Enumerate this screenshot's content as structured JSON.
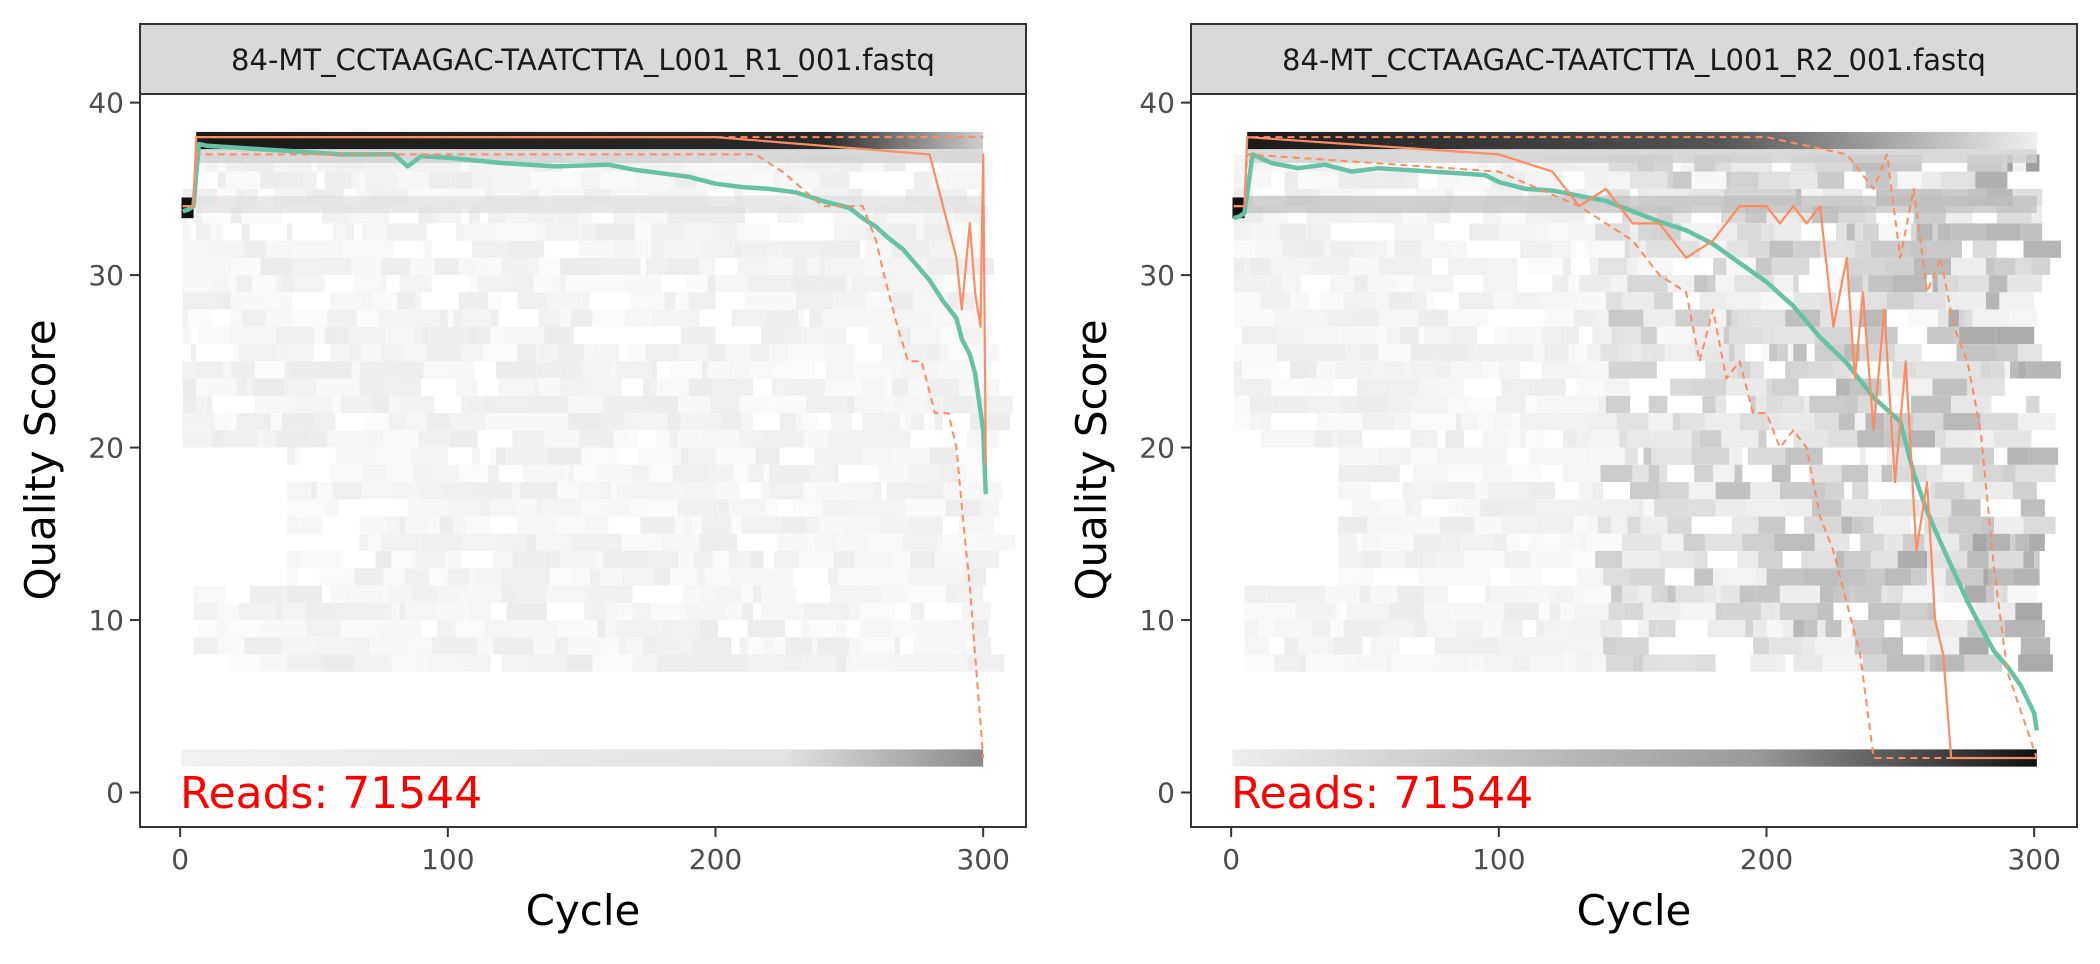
{
  "chart_data": [
    {
      "type": "line",
      "facet_label": "84-MT_CCTAAGAC-TAATCTTA_L001_R1_001.fastq",
      "xlabel": "Cycle",
      "ylabel": "Quality Score",
      "xlim": [
        -15,
        316
      ],
      "ylim": [
        -2,
        40.5
      ],
      "x_ticks": [
        0,
        100,
        200,
        300
      ],
      "y_ticks": [
        0,
        10,
        20,
        30,
        40
      ],
      "annotation": "Reads:  71544",
      "colors": {
        "mean": "#66C2A5",
        "quartile": "#FC8D62",
        "reads_text": "#FF0000",
        "strip_bg": "#D9D9D9",
        "panel_border": "#333333"
      },
      "series": [
        {
          "role": "mean",
          "x": [
            1,
            3,
            5,
            7,
            10,
            20,
            30,
            40,
            50,
            60,
            70,
            80,
            85,
            90,
            100,
            120,
            140,
            160,
            170,
            180,
            190,
            200,
            210,
            220,
            230,
            240,
            250,
            255,
            260,
            265,
            270,
            275,
            280,
            285,
            290,
            292,
            295,
            297,
            300,
            301
          ],
          "y": [
            33.7,
            33.8,
            34.0,
            37.6,
            37.5,
            37.4,
            37.3,
            37.2,
            37.1,
            37.0,
            37.0,
            37.0,
            36.3,
            36.9,
            36.8,
            36.5,
            36.3,
            36.4,
            36.1,
            35.9,
            35.7,
            35.3,
            35.1,
            35.0,
            34.8,
            34.3,
            33.9,
            33.3,
            32.8,
            32.1,
            31.5,
            30.6,
            29.7,
            28.5,
            27.5,
            26.3,
            25.4,
            24.3,
            21.0,
            17.3
          ]
        },
        {
          "role": "median",
          "x": [
            1,
            5,
            6,
            100,
            200,
            280,
            285,
            290,
            292,
            295,
            297,
            299,
            300,
            301
          ],
          "y": [
            34,
            34,
            38,
            38,
            38,
            37,
            34,
            31,
            28,
            33,
            29,
            27,
            37,
            19
          ]
        },
        {
          "role": "quartile-25",
          "x": [
            1,
            5,
            6,
            100,
            200,
            215,
            225,
            240,
            255,
            260,
            263,
            268,
            272,
            277,
            282,
            287,
            290,
            293,
            295,
            297,
            300
          ],
          "y": [
            34,
            34,
            37,
            37,
            37,
            37,
            36,
            34,
            34,
            32,
            30,
            27,
            25,
            25,
            22,
            22,
            20,
            15,
            12,
            8,
            2
          ]
        },
        {
          "role": "quartile-75",
          "x": [
            1,
            5,
            6,
            210,
            225,
            240,
            260,
            280,
            300
          ],
          "y": [
            34,
            34,
            38,
            38,
            38,
            38,
            38,
            38,
            38
          ]
        }
      ]
    },
    {
      "type": "line",
      "facet_label": "84-MT_CCTAAGAC-TAATCTTA_L001_R2_001.fastq",
      "xlabel": "Cycle",
      "ylabel": "Quality Score",
      "xlim": [
        -15,
        316
      ],
      "ylim": [
        -2,
        40.5
      ],
      "x_ticks": [
        0,
        100,
        200,
        300
      ],
      "y_ticks": [
        0,
        10,
        20,
        30,
        40
      ],
      "annotation": "Reads:  71544",
      "colors": {
        "mean": "#66C2A5",
        "quartile": "#FC8D62",
        "reads_text": "#FF0000",
        "strip_bg": "#D9D9D9",
        "panel_border": "#333333"
      },
      "series": [
        {
          "role": "mean",
          "x": [
            1,
            3,
            5,
            8,
            15,
            25,
            35,
            45,
            55,
            65,
            75,
            85,
            95,
            100,
            110,
            120,
            130,
            140,
            150,
            160,
            170,
            180,
            190,
            200,
            210,
            220,
            230,
            240,
            250,
            255,
            260,
            265,
            270,
            275,
            280,
            285,
            290,
            295,
            300,
            301
          ],
          "y": [
            33.3,
            33.4,
            33.6,
            37.0,
            36.5,
            36.2,
            36.4,
            36.0,
            36.2,
            36.1,
            36.0,
            35.9,
            35.8,
            35.4,
            35.0,
            34.9,
            34.6,
            34.3,
            33.7,
            33.1,
            32.6,
            31.8,
            30.7,
            29.6,
            28.2,
            26.4,
            24.9,
            22.9,
            21.5,
            18.5,
            16.3,
            14.5,
            12.8,
            11.1,
            9.6,
            8.2,
            7.3,
            6.2,
            4.6,
            3.6
          ]
        },
        {
          "role": "median",
          "x": [
            1,
            5,
            6,
            100,
            120,
            130,
            140,
            150,
            160,
            170,
            180,
            190,
            200,
            205,
            210,
            215,
            220,
            225,
            230,
            233,
            236,
            240,
            244,
            248,
            252,
            256,
            260,
            263,
            266,
            269,
            301
          ],
          "y": [
            34,
            34,
            38,
            37,
            36,
            34,
            35,
            33,
            33,
            31,
            32,
            34,
            34,
            33,
            34,
            33,
            34,
            27,
            31,
            24,
            29,
            21,
            28,
            18,
            25,
            14,
            18,
            10,
            8,
            2,
            2
          ]
        },
        {
          "role": "quartile-25",
          "x": [
            1,
            5,
            6,
            100,
            130,
            150,
            160,
            170,
            175,
            180,
            185,
            190,
            195,
            200,
            205,
            210,
            215,
            220,
            225,
            230,
            235,
            240,
            245,
            250,
            301
          ],
          "y": [
            34,
            34,
            37,
            36,
            34,
            32,
            30,
            29,
            25,
            28,
            24,
            25,
            22,
            22,
            20,
            21,
            20,
            16,
            14,
            11,
            8,
            2,
            2,
            2,
            2
          ]
        },
        {
          "role": "quartile-75",
          "x": [
            1,
            5,
            6,
            200,
            230,
            240,
            245,
            250,
            255,
            260,
            265,
            270,
            275,
            280,
            285,
            290,
            301
          ],
          "y": [
            34,
            34,
            38,
            38,
            37,
            35,
            37,
            31,
            35,
            29,
            31,
            27,
            25,
            21,
            13,
            7,
            2
          ]
        }
      ]
    }
  ]
}
